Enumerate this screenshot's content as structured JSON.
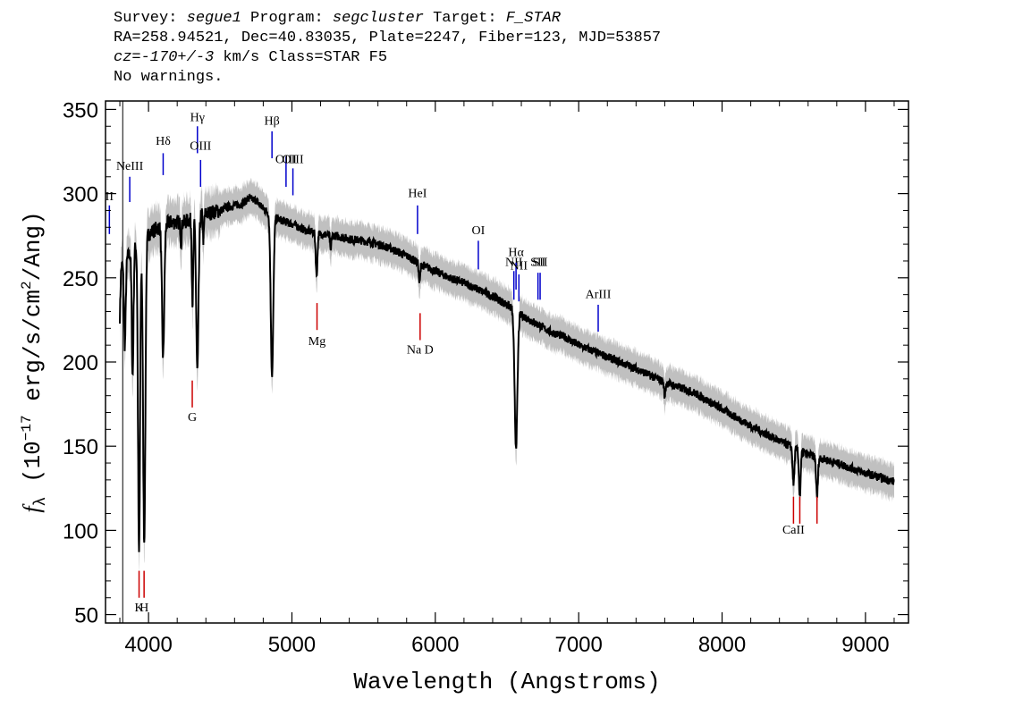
{
  "header": {
    "line1": {
      "survey_label": "Survey: ",
      "survey": "segue1",
      "program_label": " Program: ",
      "program": "segcluster",
      "target_label": " Target: ",
      "target": "F_STAR"
    },
    "line2": "RA=258.94521, Dec=40.83035, Plate=2247, Fiber=123, MJD=53857",
    "line3": {
      "cz": "cz=-170+/-3",
      "rest": " km/s Class=STAR F5"
    },
    "line4": "No warnings."
  },
  "chart_data": {
    "type": "line",
    "xlabel": "Wavelength (Angstroms)",
    "ylabel": "f_λ (10^-17 erg/s/cm^2/Ang)",
    "ylabel_parts": {
      "f": "f",
      "lambda": "λ",
      "pre": " (10",
      "exp1": "−17",
      "mid": " erg/s/cm",
      "exp2": "2",
      "post": "/Ang)"
    },
    "xlim": [
      3700,
      9300
    ],
    "ylim": [
      45,
      355
    ],
    "xticks": [
      4000,
      5000,
      6000,
      7000,
      8000,
      9000
    ],
    "xtick_labels": [
      "4000",
      "5000",
      "6000",
      "7000",
      "8000",
      "9000"
    ],
    "yticks": [
      50,
      100,
      150,
      200,
      250,
      300,
      350
    ],
    "ytick_labels": [
      "50",
      "100",
      "150",
      "200",
      "250",
      "300",
      "350"
    ],
    "series": [
      {
        "color": "#000000",
        "error_band_color": "#c0c0c0",
        "continuum": [
          [
            3800,
            255
          ],
          [
            3850,
            262
          ],
          [
            3900,
            268
          ],
          [
            3950,
            272
          ],
          [
            4000,
            276
          ],
          [
            4050,
            279
          ],
          [
            4100,
            281
          ],
          [
            4150,
            283
          ],
          [
            4200,
            283
          ],
          [
            4250,
            283
          ],
          [
            4300,
            285
          ],
          [
            4350,
            287
          ],
          [
            4400,
            288
          ],
          [
            4450,
            289
          ],
          [
            4500,
            290
          ],
          [
            4550,
            292
          ],
          [
            4600,
            293
          ],
          [
            4650,
            294
          ],
          [
            4700,
            297
          ],
          [
            4750,
            296
          ],
          [
            4800,
            291
          ],
          [
            4850,
            288
          ],
          [
            4900,
            285
          ],
          [
            5000,
            282
          ],
          [
            5100,
            278
          ],
          [
            5200,
            276
          ],
          [
            5300,
            275
          ],
          [
            5400,
            273
          ],
          [
            5500,
            272
          ],
          [
            5600,
            270
          ],
          [
            5700,
            267
          ],
          [
            5800,
            263
          ],
          [
            5900,
            258
          ],
          [
            6000,
            254
          ],
          [
            6100,
            250
          ],
          [
            6200,
            247
          ],
          [
            6300,
            243
          ],
          [
            6400,
            239
          ],
          [
            6500,
            234
          ],
          [
            6600,
            228
          ],
          [
            6700,
            223
          ],
          [
            6800,
            218
          ],
          [
            6900,
            215
          ],
          [
            7000,
            210
          ],
          [
            7200,
            203
          ],
          [
            7400,
            196
          ],
          [
            7600,
            188
          ],
          [
            7800,
            182
          ],
          [
            8000,
            172
          ],
          [
            8200,
            162
          ],
          [
            8400,
            153
          ],
          [
            8600,
            145
          ],
          [
            8800,
            140
          ],
          [
            9000,
            134
          ],
          [
            9200,
            129
          ]
        ],
        "absorption_lines": [
          {
            "center": 3770,
            "depth": 20,
            "width": 5
          },
          {
            "center": 3798,
            "depth": 30,
            "width": 5
          },
          {
            "center": 3835,
            "depth": 50,
            "width": 6
          },
          {
            "center": 3889,
            "depth": 75,
            "width": 6
          },
          {
            "center": 3933.7,
            "depth": 185,
            "width": 7
          },
          {
            "center": 3970,
            "depth": 180,
            "width": 8
          },
          {
            "center": 4101.7,
            "depth": 78,
            "width": 8
          },
          {
            "center": 4227,
            "depth": 12,
            "width": 4
          },
          {
            "center": 4307,
            "depth": 50,
            "width": 5
          },
          {
            "center": 4340.5,
            "depth": 92,
            "width": 8
          },
          {
            "center": 4383,
            "depth": 15,
            "width": 4
          },
          {
            "center": 4861.3,
            "depth": 95,
            "width": 9
          },
          {
            "center": 5172,
            "depth": 25,
            "width": 6
          },
          {
            "center": 5270,
            "depth": 10,
            "width": 4
          },
          {
            "center": 5890,
            "depth": 12,
            "width": 5
          },
          {
            "center": 6562.8,
            "depth": 80,
            "width": 10
          },
          {
            "center": 7600,
            "depth": 8,
            "width": 5
          },
          {
            "center": 8498,
            "depth": 22,
            "width": 6
          },
          {
            "center": 8542,
            "depth": 27,
            "width": 6
          },
          {
            "center": 8662,
            "depth": 24,
            "width": 6
          }
        ]
      }
    ],
    "emission_line_markers": [
      {
        "label": "II",
        "wavelength": 3727,
        "y_top": 293,
        "y_bottom": 276,
        "label_y": 296
      },
      {
        "label": "NeIII",
        "wavelength": 3869,
        "y_top": 310,
        "y_bottom": 295,
        "label_y": 314
      },
      {
        "label": "Hδ",
        "wavelength": 4102,
        "y_top": 324,
        "y_bottom": 311,
        "label_y": 329
      },
      {
        "label": "Hγ",
        "wavelength": 4341,
        "y_top": 340,
        "y_bottom": 324,
        "label_y": 343
      },
      {
        "label": "OIII",
        "wavelength": 4363,
        "y_top": 320,
        "y_bottom": 304,
        "label_y": 326
      },
      {
        "label": "Hβ",
        "wavelength": 4861,
        "y_top": 337,
        "y_bottom": 321,
        "label_y": 341
      },
      {
        "label": "OIII",
        "wavelength": 4959,
        "y_top": 322,
        "y_bottom": 304,
        "label_y": 318
      },
      {
        "label": "OIII",
        "wavelength": 5007,
        "y_top": 315,
        "y_bottom": 299,
        "label_y": 318
      },
      {
        "label": "HeI",
        "wavelength": 5876,
        "y_top": 293,
        "y_bottom": 276,
        "label_y": 298
      },
      {
        "label": "OI",
        "wavelength": 6300,
        "y_top": 272,
        "y_bottom": 255,
        "label_y": 276
      },
      {
        "label": "NII",
        "wavelength": 6548,
        "y_top": 254,
        "y_bottom": 237,
        "label_y": 257
      },
      {
        "label": "Hα",
        "wavelength": 6563,
        "y_top": 259,
        "y_bottom": 243,
        "label_y": 263
      },
      {
        "label": "NII",
        "wavelength": 6583,
        "y_top": 252,
        "y_bottom": 236,
        "label_y": 255
      },
      {
        "label": "SII",
        "wavelength": 6716,
        "y_top": 253,
        "y_bottom": 237,
        "label_y": 257
      },
      {
        "label": "SII",
        "wavelength": 6731,
        "y_top": 253,
        "y_bottom": 237,
        "label_y": 257
      },
      {
        "label": "ArIII",
        "wavelength": 7136,
        "y_top": 234,
        "y_bottom": 218,
        "label_y": 238
      }
    ],
    "absorption_line_markers": [
      {
        "label": "G",
        "wavelength": 4305,
        "y_top": 189,
        "y_bottom": 173,
        "label_y": 165
      },
      {
        "label": "Mg",
        "wavelength": 5175,
        "y_top": 235,
        "y_bottom": 219,
        "label_y": 210
      },
      {
        "label": "Na D",
        "wavelength": 5894,
        "y_top": 229,
        "y_bottom": 213,
        "label_y": 205
      },
      {
        "label": "K",
        "wavelength": 3934,
        "y_top": 76,
        "y_bottom": 60,
        "label_y": 52
      },
      {
        "label": "H",
        "wavelength": 3969,
        "y_top": 76,
        "y_bottom": 60,
        "label_y": 52
      },
      {
        "label": "CaII",
        "wavelength": 8498,
        "y_top": 120,
        "y_bottom": 104,
        "label_y": 98
      },
      {
        "label": "",
        "wavelength": 8542,
        "y_top": 120,
        "y_bottom": 104
      },
      {
        "label": "",
        "wavelength": 8662,
        "y_top": 120,
        "y_bottom": 104
      }
    ],
    "extra_vertical_line": {
      "wavelength": 3820
    },
    "emission_color": "#0000cc",
    "absorption_color": "#cc0000"
  }
}
